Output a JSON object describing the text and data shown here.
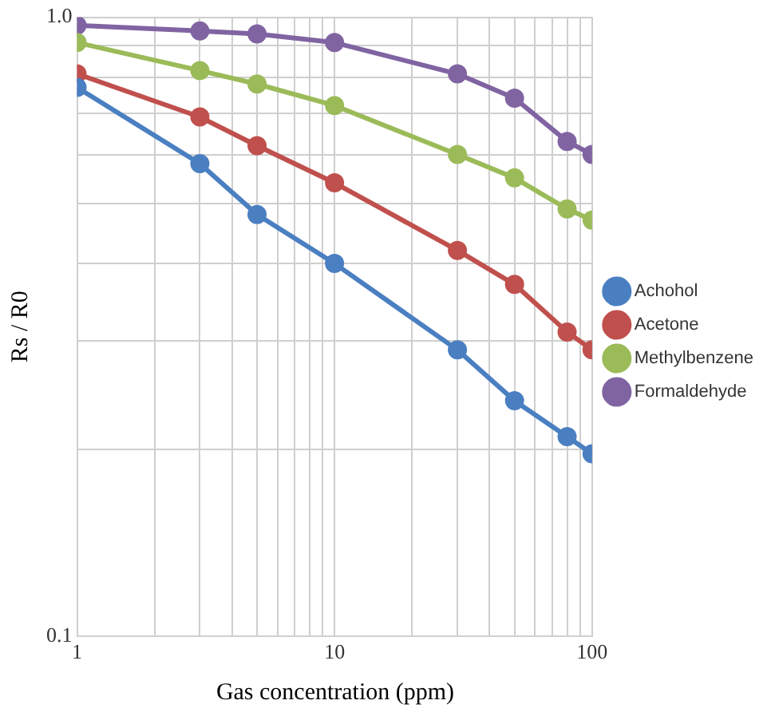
{
  "chart_data": {
    "type": "line",
    "xlabel": "Gas concentration (ppm)",
    "ylabel": "Rs / R0",
    "x": [
      1,
      3,
      5,
      10,
      30,
      50,
      80,
      100
    ],
    "series": [
      {
        "name": "Achohol",
        "color": "#4a7fc1",
        "values": [
          0.77,
          0.58,
          0.48,
          0.4,
          0.29,
          0.24,
          0.21,
          0.197
        ]
      },
      {
        "name": "Acetone",
        "color": "#c0504d",
        "values": [
          0.81,
          0.69,
          0.62,
          0.54,
          0.42,
          0.37,
          0.31,
          0.29
        ]
      },
      {
        "name": "Methylbenzene",
        "color": "#9bbb59",
        "values": [
          0.91,
          0.82,
          0.78,
          0.72,
          0.6,
          0.55,
          0.49,
          0.47
        ]
      },
      {
        "name": "Formaldehyde",
        "color": "#8064a2",
        "values": [
          0.97,
          0.95,
          0.94,
          0.91,
          0.81,
          0.74,
          0.63,
          0.6
        ]
      }
    ],
    "log": "xy",
    "xlim": [
      1,
      100
    ],
    "ylim": [
      0.1,
      1
    ],
    "xticks": [
      1,
      {
        "value": 2,
        "label": null
      },
      {
        "value": 3,
        "label": null
      },
      {
        "value": 4,
        "label": null
      },
      {
        "value": 5,
        "label": null
      },
      {
        "value": 6,
        "label": null
      },
      {
        "value": 7,
        "label": null
      },
      {
        "value": 8,
        "label": null
      },
      {
        "value": 9,
        "label": null
      },
      10,
      {
        "value": 20,
        "label": null
      },
      {
        "value": 30,
        "label": null
      },
      {
        "value": 40,
        "label": null
      },
      {
        "value": 50,
        "label": null
      },
      {
        "value": 60,
        "label": null
      },
      {
        "value": 70,
        "label": null
      },
      {
        "value": 80,
        "label": null
      },
      {
        "value": 90,
        "label": null
      },
      100
    ],
    "yticks": [
      {
        "value": 0.1,
        "label": "0.1"
      },
      {
        "value": 0.2,
        "label": null
      },
      {
        "value": 0.3,
        "label": null
      },
      {
        "value": 0.4,
        "label": null
      },
      {
        "value": 0.5,
        "label": null
      },
      {
        "value": 0.6,
        "label": null
      },
      {
        "value": 0.7,
        "label": null
      },
      {
        "value": 0.8,
        "label": null
      },
      {
        "value": 0.9,
        "label": null
      },
      {
        "value": 1,
        "label": "1.0"
      }
    ],
    "grid": true,
    "legend": "right",
    "marker": "circle",
    "line_style": "solid"
  }
}
